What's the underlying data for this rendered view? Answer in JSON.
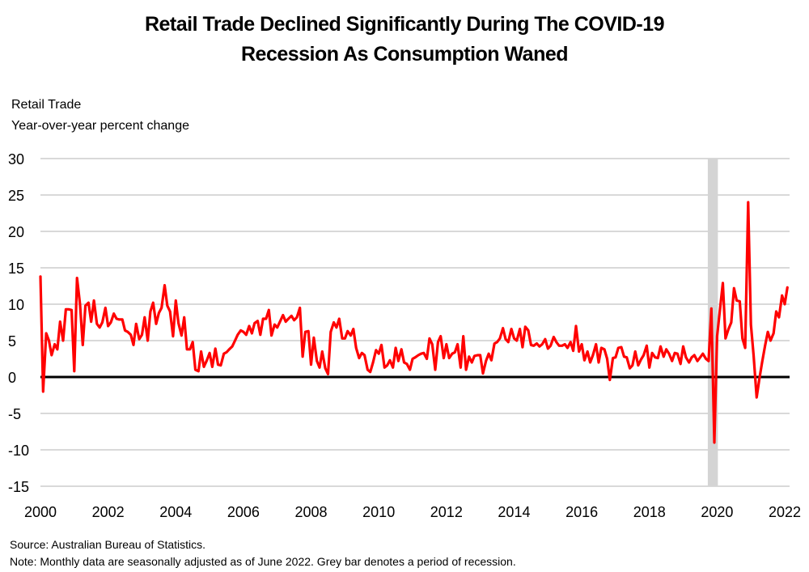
{
  "chart_data": {
    "type": "line",
    "title": "Retail Trade Declined Significantly During The COVID-19 Recession As Consumption Waned",
    "title_lines": [
      "Retail Trade Declined Significantly During The COVID-19",
      "Recession As Consumption Waned"
    ],
    "ylabel_lines": [
      "Retail Trade",
      "Year-over-year percent change"
    ],
    "xlabel": "",
    "ylim": [
      -15,
      30
    ],
    "xlim": [
      2000,
      2022
    ],
    "yticks": [
      30,
      25,
      20,
      15,
      10,
      5,
      0,
      -5,
      -10,
      -15
    ],
    "xticks": [
      2000,
      2002,
      2004,
      2006,
      2008,
      2010,
      2012,
      2014,
      2016,
      2018,
      2020,
      2022
    ],
    "grid": true,
    "legend": "none",
    "recession_shading": [
      {
        "start": 2019.75,
        "end": 2020.0
      }
    ],
    "series": [
      {
        "name": "Retail Trade",
        "color": "#ff0000",
        "points": [
          [
            2000.0,
            13.8
          ],
          [
            2000.08,
            -2.0
          ],
          [
            2000.17,
            6.0
          ],
          [
            2000.25,
            5.0
          ],
          [
            2000.33,
            3.0
          ],
          [
            2000.42,
            4.5
          ],
          [
            2000.5,
            3.8
          ],
          [
            2000.58,
            7.6
          ],
          [
            2000.67,
            5.0
          ],
          [
            2000.75,
            9.3
          ],
          [
            2000.83,
            9.3
          ],
          [
            2000.92,
            9.2
          ],
          [
            2001.0,
            0.8
          ],
          [
            2001.08,
            13.6
          ],
          [
            2001.17,
            10.0
          ],
          [
            2001.25,
            4.4
          ],
          [
            2001.33,
            9.8
          ],
          [
            2001.42,
            10.2
          ],
          [
            2001.5,
            7.6
          ],
          [
            2001.58,
            10.5
          ],
          [
            2001.67,
            7.3
          ],
          [
            2001.75,
            6.8
          ],
          [
            2001.83,
            7.5
          ],
          [
            2001.92,
            9.5
          ],
          [
            2002.0,
            7.0
          ],
          [
            2002.08,
            7.5
          ],
          [
            2002.17,
            8.7
          ],
          [
            2002.25,
            8.0
          ],
          [
            2002.33,
            7.9
          ],
          [
            2002.42,
            7.9
          ],
          [
            2002.5,
            6.4
          ],
          [
            2002.58,
            6.2
          ],
          [
            2002.67,
            5.8
          ],
          [
            2002.75,
            4.4
          ],
          [
            2002.83,
            7.3
          ],
          [
            2002.92,
            5.2
          ],
          [
            2003.0,
            5.8
          ],
          [
            2003.08,
            8.2
          ],
          [
            2003.17,
            5.0
          ],
          [
            2003.25,
            9.0
          ],
          [
            2003.33,
            10.2
          ],
          [
            2003.42,
            7.3
          ],
          [
            2003.5,
            8.8
          ],
          [
            2003.58,
            9.5
          ],
          [
            2003.67,
            12.6
          ],
          [
            2003.75,
            9.8
          ],
          [
            2003.83,
            9.0
          ],
          [
            2003.92,
            5.6
          ],
          [
            2004.0,
            10.5
          ],
          [
            2004.08,
            7.4
          ],
          [
            2004.17,
            5.7
          ],
          [
            2004.25,
            8.2
          ],
          [
            2004.33,
            3.8
          ],
          [
            2004.42,
            3.8
          ],
          [
            2004.5,
            4.8
          ],
          [
            2004.58,
            1.0
          ],
          [
            2004.67,
            0.8
          ],
          [
            2004.75,
            3.5
          ],
          [
            2004.83,
            1.4
          ],
          [
            2004.92,
            2.3
          ],
          [
            2005.0,
            3.3
          ],
          [
            2005.08,
            1.4
          ],
          [
            2005.17,
            3.9
          ],
          [
            2005.25,
            1.7
          ],
          [
            2005.33,
            1.6
          ],
          [
            2005.42,
            3.2
          ],
          [
            2005.5,
            3.4
          ],
          [
            2005.58,
            3.8
          ],
          [
            2005.67,
            4.2
          ],
          [
            2005.75,
            5.0
          ],
          [
            2005.83,
            5.8
          ],
          [
            2005.92,
            6.4
          ],
          [
            2006.0,
            6.2
          ],
          [
            2006.08,
            5.8
          ],
          [
            2006.17,
            7.0
          ],
          [
            2006.25,
            6.0
          ],
          [
            2006.33,
            7.4
          ],
          [
            2006.42,
            7.7
          ],
          [
            2006.5,
            5.8
          ],
          [
            2006.58,
            8.0
          ],
          [
            2006.67,
            8.0
          ],
          [
            2006.75,
            9.2
          ],
          [
            2006.83,
            5.7
          ],
          [
            2006.92,
            7.2
          ],
          [
            2007.0,
            6.8
          ],
          [
            2007.08,
            7.6
          ],
          [
            2007.17,
            8.5
          ],
          [
            2007.25,
            7.6
          ],
          [
            2007.33,
            8.0
          ],
          [
            2007.42,
            8.4
          ],
          [
            2007.5,
            7.8
          ],
          [
            2007.58,
            8.2
          ],
          [
            2007.67,
            9.5
          ],
          [
            2007.75,
            2.8
          ],
          [
            2007.83,
            6.2
          ],
          [
            2007.92,
            6.3
          ],
          [
            2008.0,
            1.7
          ],
          [
            2008.08,
            5.4
          ],
          [
            2008.17,
            2.2
          ],
          [
            2008.25,
            1.3
          ],
          [
            2008.33,
            3.5
          ],
          [
            2008.42,
            1.2
          ],
          [
            2008.5,
            0.4
          ],
          [
            2008.58,
            6.2
          ],
          [
            2008.67,
            7.5
          ],
          [
            2008.75,
            6.8
          ],
          [
            2008.83,
            8.0
          ],
          [
            2008.92,
            5.3
          ],
          [
            2009.0,
            5.3
          ],
          [
            2009.08,
            6.3
          ],
          [
            2009.17,
            5.7
          ],
          [
            2009.25,
            6.6
          ],
          [
            2009.33,
            4.0
          ],
          [
            2009.42,
            2.6
          ],
          [
            2009.5,
            3.3
          ],
          [
            2009.58,
            3.0
          ],
          [
            2009.67,
            1.0
          ],
          [
            2009.75,
            0.7
          ],
          [
            2009.83,
            2.0
          ],
          [
            2009.92,
            3.7
          ],
          [
            2010.0,
            3.2
          ],
          [
            2010.08,
            4.4
          ],
          [
            2010.17,
            1.3
          ],
          [
            2010.25,
            1.6
          ],
          [
            2010.33,
            2.3
          ],
          [
            2010.42,
            1.3
          ],
          [
            2010.5,
            4.0
          ],
          [
            2010.58,
            2.2
          ],
          [
            2010.67,
            3.8
          ],
          [
            2010.75,
            2.0
          ],
          [
            2010.83,
            1.8
          ],
          [
            2010.92,
            1.0
          ],
          [
            2011.0,
            2.5
          ],
          [
            2011.08,
            2.7
          ],
          [
            2011.17,
            3.0
          ],
          [
            2011.25,
            3.2
          ],
          [
            2011.33,
            3.3
          ],
          [
            2011.42,
            2.5
          ],
          [
            2011.5,
            5.3
          ],
          [
            2011.58,
            4.5
          ],
          [
            2011.67,
            1.0
          ],
          [
            2011.75,
            4.8
          ],
          [
            2011.83,
            5.6
          ],
          [
            2011.92,
            2.6
          ],
          [
            2012.0,
            4.5
          ],
          [
            2012.08,
            2.6
          ],
          [
            2012.17,
            3.2
          ],
          [
            2012.25,
            3.4
          ],
          [
            2012.33,
            4.5
          ],
          [
            2012.42,
            1.3
          ],
          [
            2012.5,
            5.6
          ],
          [
            2012.58,
            1.0
          ],
          [
            2012.67,
            2.8
          ],
          [
            2012.75,
            2.0
          ],
          [
            2012.83,
            2.9
          ],
          [
            2012.92,
            3.0
          ],
          [
            2013.0,
            3.0
          ],
          [
            2013.08,
            0.5
          ],
          [
            2013.17,
            2.2
          ],
          [
            2013.25,
            3.2
          ],
          [
            2013.33,
            2.3
          ],
          [
            2013.42,
            4.6
          ],
          [
            2013.5,
            4.8
          ],
          [
            2013.58,
            5.3
          ],
          [
            2013.67,
            6.7
          ],
          [
            2013.75,
            5.2
          ],
          [
            2013.83,
            4.8
          ],
          [
            2013.92,
            6.6
          ],
          [
            2014.0,
            5.3
          ],
          [
            2014.08,
            5.0
          ],
          [
            2014.17,
            6.6
          ],
          [
            2014.25,
            4.1
          ],
          [
            2014.33,
            6.9
          ],
          [
            2014.42,
            6.4
          ],
          [
            2014.5,
            4.4
          ],
          [
            2014.58,
            4.3
          ],
          [
            2014.67,
            4.6
          ],
          [
            2014.75,
            4.2
          ],
          [
            2014.83,
            4.5
          ],
          [
            2014.92,
            5.2
          ],
          [
            2015.0,
            3.9
          ],
          [
            2015.08,
            4.3
          ],
          [
            2015.17,
            5.5
          ],
          [
            2015.25,
            4.8
          ],
          [
            2015.33,
            4.3
          ],
          [
            2015.42,
            4.3
          ],
          [
            2015.5,
            4.5
          ],
          [
            2015.58,
            4.0
          ],
          [
            2015.67,
            4.8
          ],
          [
            2015.75,
            3.6
          ],
          [
            2015.83,
            7.0
          ],
          [
            2015.92,
            3.5
          ],
          [
            2016.0,
            4.5
          ],
          [
            2016.08,
            2.3
          ],
          [
            2016.17,
            3.5
          ],
          [
            2016.25,
            2.0
          ],
          [
            2016.33,
            3.0
          ],
          [
            2016.42,
            4.5
          ],
          [
            2016.5,
            2.0
          ],
          [
            2016.58,
            4.0
          ],
          [
            2016.67,
            3.8
          ],
          [
            2016.75,
            2.5
          ],
          [
            2016.83,
            -0.4
          ],
          [
            2016.92,
            2.6
          ],
          [
            2017.0,
            2.7
          ],
          [
            2017.08,
            4.0
          ],
          [
            2017.17,
            4.1
          ],
          [
            2017.25,
            2.8
          ],
          [
            2017.33,
            2.7
          ],
          [
            2017.42,
            1.2
          ],
          [
            2017.5,
            1.6
          ],
          [
            2017.58,
            3.5
          ],
          [
            2017.67,
            1.6
          ],
          [
            2017.75,
            2.4
          ],
          [
            2017.83,
            3.0
          ],
          [
            2017.92,
            4.3
          ],
          [
            2018.0,
            1.3
          ],
          [
            2018.08,
            3.3
          ],
          [
            2018.17,
            2.7
          ],
          [
            2018.25,
            2.6
          ],
          [
            2018.33,
            4.2
          ],
          [
            2018.42,
            2.8
          ],
          [
            2018.5,
            3.8
          ],
          [
            2018.58,
            3.2
          ],
          [
            2018.67,
            2.2
          ],
          [
            2018.75,
            3.3
          ],
          [
            2018.83,
            3.2
          ],
          [
            2018.92,
            1.8
          ],
          [
            2019.0,
            4.2
          ],
          [
            2019.08,
            2.7
          ],
          [
            2019.17,
            2.0
          ],
          [
            2019.25,
            2.7
          ],
          [
            2019.33,
            3.0
          ],
          [
            2019.42,
            2.2
          ],
          [
            2019.5,
            2.7
          ],
          [
            2019.58,
            3.2
          ],
          [
            2019.67,
            2.5
          ],
          [
            2019.75,
            2.2
          ],
          [
            2019.83,
            9.4
          ],
          [
            2019.92,
            -9.0
          ],
          [
            2020.0,
            5.6
          ],
          [
            2020.08,
            9.0
          ],
          [
            2020.17,
            12.9
          ],
          [
            2020.25,
            5.3
          ],
          [
            2020.33,
            6.5
          ],
          [
            2020.42,
            7.5
          ],
          [
            2020.5,
            12.2
          ],
          [
            2020.58,
            10.5
          ],
          [
            2020.67,
            10.4
          ],
          [
            2020.75,
            5.3
          ],
          [
            2020.83,
            4.0
          ],
          [
            2020.92,
            24.0
          ],
          [
            2021.0,
            7.2
          ],
          [
            2021.08,
            3.0
          ],
          [
            2021.17,
            -2.8
          ],
          [
            2021.25,
            -0.3
          ],
          [
            2021.33,
            2.0
          ],
          [
            2021.42,
            4.3
          ],
          [
            2021.5,
            6.2
          ],
          [
            2021.58,
            5.0
          ],
          [
            2021.67,
            6.0
          ],
          [
            2021.75,
            9.0
          ],
          [
            2021.83,
            8.2
          ],
          [
            2021.92,
            11.2
          ],
          [
            2022.0,
            10.0
          ],
          [
            2022.08,
            12.3
          ]
        ]
      }
    ]
  },
  "footer": {
    "source": "Source: Australian Bureau of Statistics.",
    "note": "Note: Monthly data are seasonally adjusted as of June 2022. Grey bar denotes a period of recession."
  },
  "colors": {
    "line": "#ff0000",
    "gridline": "#d9d9d9",
    "zero_line": "#000000",
    "recession": "#d4d4d4"
  }
}
